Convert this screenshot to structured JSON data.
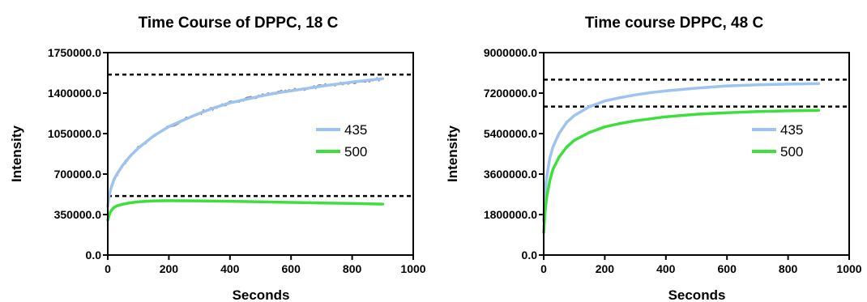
{
  "colors": {
    "series_435": "#9ec3f0",
    "series_500": "#3ddf3d",
    "noise": "#666666",
    "reference_lines": "#000000"
  },
  "chart_data": [
    {
      "type": "line",
      "title": "Time Course of DPPC, 18 C",
      "xlabel": "Seconds",
      "ylabel": "Intensity",
      "xlim": [
        0,
        1000
      ],
      "ylim": [
        0,
        1750000
      ],
      "x_ticks": [
        0,
        200,
        400,
        600,
        800,
        1000
      ],
      "x_tick_labels": [
        "0",
        "200",
        "400",
        "600",
        "800",
        "1000"
      ],
      "y_ticks": [
        0,
        350000,
        700000,
        1050000,
        1400000,
        1750000
      ],
      "y_tick_labels": [
        "0.0",
        "350000.0",
        "700000.0",
        "1050000.0",
        "1400000.0",
        "1750000.0"
      ],
      "legend_position": "right",
      "grid": false,
      "series": [
        {
          "name": "435",
          "color_key": "series_435",
          "x": [
            0,
            5,
            10,
            20,
            30,
            50,
            75,
            100,
            150,
            200,
            250,
            300,
            350,
            400,
            450,
            500,
            550,
            600,
            650,
            700,
            750,
            800,
            850,
            900
          ],
          "y": [
            420000,
            520000,
            575000,
            650000,
            700000,
            780000,
            860000,
            925000,
            1030000,
            1110000,
            1170000,
            1225000,
            1275000,
            1315000,
            1345000,
            1375000,
            1400000,
            1420000,
            1440000,
            1460000,
            1478000,
            1495000,
            1510000,
            1525000
          ]
        },
        {
          "name": "500",
          "color_key": "series_500",
          "x": [
            0,
            5,
            10,
            20,
            30,
            50,
            75,
            100,
            150,
            200,
            300,
            400,
            500,
            600,
            700,
            800,
            900
          ],
          "y": [
            300000,
            350000,
            380000,
            410000,
            425000,
            440000,
            452000,
            460000,
            468000,
            470000,
            468000,
            465000,
            460000,
            455000,
            450000,
            446000,
            440000
          ]
        }
      ],
      "reference_lines_y": [
        1560000,
        510000
      ]
    },
    {
      "type": "line",
      "title": "Time course DPPC, 48 C",
      "xlabel": "Seconds",
      "ylabel": "Intensity",
      "xlim": [
        0,
        1000
      ],
      "ylim": [
        0,
        9000000
      ],
      "x_ticks": [
        0,
        200,
        400,
        600,
        800,
        1000
      ],
      "x_tick_labels": [
        "0",
        "200",
        "400",
        "600",
        "800",
        "1000"
      ],
      "y_ticks": [
        0,
        1800000,
        3600000,
        5400000,
        7200000,
        9000000
      ],
      "y_tick_labels": [
        "0.0",
        "1800000.0",
        "3600000.0",
        "5400000.0",
        "7200000.0",
        "9000000.0"
      ],
      "legend_position": "right",
      "grid": false,
      "series": [
        {
          "name": "435",
          "color_key": "series_435",
          "x": [
            0,
            5,
            10,
            20,
            30,
            50,
            75,
            100,
            150,
            200,
            250,
            300,
            350,
            400,
            500,
            600,
            700,
            800,
            900
          ],
          "y": [
            1500000,
            2900000,
            3500000,
            4300000,
            4800000,
            5400000,
            5900000,
            6200000,
            6600000,
            6850000,
            7000000,
            7120000,
            7220000,
            7300000,
            7420000,
            7520000,
            7570000,
            7600000,
            7620000
          ]
        },
        {
          "name": "500",
          "color_key": "series_500",
          "x": [
            0,
            5,
            10,
            20,
            30,
            50,
            75,
            100,
            150,
            200,
            250,
            300,
            400,
            500,
            600,
            700,
            800,
            900
          ],
          "y": [
            1000000,
            2000000,
            2600000,
            3300000,
            3800000,
            4350000,
            4800000,
            5100000,
            5450000,
            5700000,
            5850000,
            5970000,
            6150000,
            6260000,
            6330000,
            6380000,
            6410000,
            6430000
          ]
        }
      ],
      "reference_lines_y": [
        7800000,
        6600000
      ]
    }
  ]
}
